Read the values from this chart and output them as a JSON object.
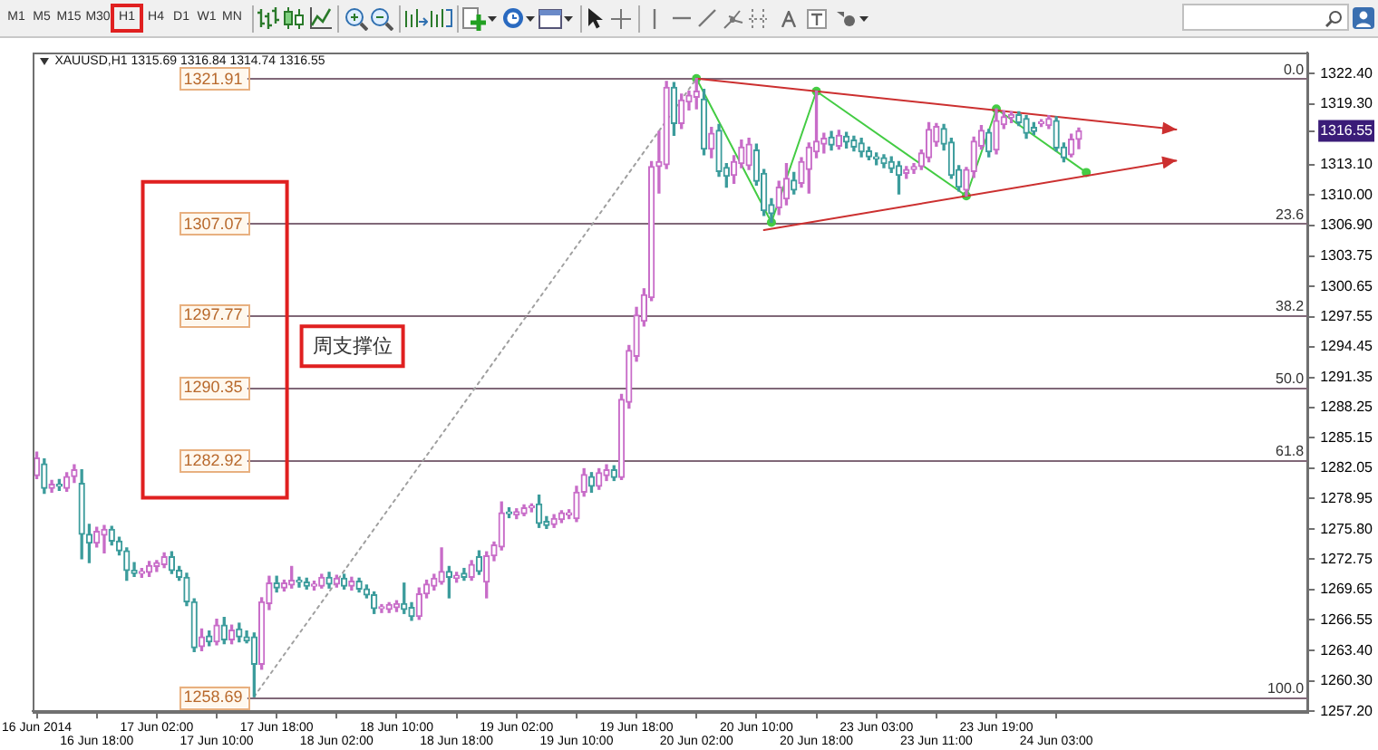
{
  "chart_data": {
    "type": "candlestick",
    "title": "XAUUSD,H1 1315.69 1316.84 1314.74 1316.55",
    "categories": [
      "16 Jun 2014",
      null,
      null,
      null,
      null,
      null,
      null,
      null,
      "16 Jun 18:00",
      null,
      null,
      null,
      null,
      null,
      null,
      null,
      "17 Jun 02:00",
      null,
      null,
      null,
      null,
      null,
      null,
      null,
      "17 Jun 10:00",
      null,
      null,
      null,
      null,
      null,
      null,
      null,
      "17 Jun 18:00",
      null,
      null,
      null,
      null,
      null,
      null,
      null,
      "18 Jun 02:00",
      null,
      null,
      null,
      null,
      null,
      null,
      null,
      "18 Jun 10:00",
      null,
      null,
      null,
      null,
      null,
      null,
      null,
      "18 Jun 18:00",
      null,
      null,
      null,
      null,
      null,
      null,
      null,
      "19 Jun 02:00",
      null,
      null,
      null,
      null,
      null,
      null,
      null,
      "19 Jun 10:00",
      null,
      null,
      null,
      null,
      null,
      null,
      null,
      "19 Jun 18:00",
      null,
      null,
      null,
      null,
      null,
      null,
      null,
      "20 Jun 02:00",
      null,
      null,
      null,
      null,
      null,
      null,
      null,
      "20 Jun 10:00",
      null,
      null,
      null,
      null,
      null,
      null,
      null,
      "20 Jun 18:00",
      null,
      null,
      null,
      null,
      null,
      null,
      null,
      "23 Jun 03:00",
      null,
      null,
      null,
      null,
      null,
      null,
      null,
      "23 Jun 11:00",
      null,
      null,
      null,
      null,
      null,
      null,
      null,
      "23 Jun 19:00",
      null,
      null,
      null,
      null,
      null,
      null,
      null,
      "24 Jun 03:00",
      null,
      null,
      null,
      null,
      null,
      null,
      null,
      null,
      null,
      null,
      null,
      null,
      null,
      null,
      null,
      null,
      null,
      null,
      null,
      null,
      null,
      null,
      null,
      null,
      null,
      null,
      null,
      null,
      null,
      null,
      null,
      null,
      null
    ],
    "ylim": [
      1257.2,
      1324.6
    ],
    "yticks": [
      {
        "value": 1322.4,
        "label": "1322.40"
      },
      {
        "value": 1319.3,
        "label": "1319.30"
      },
      1316.55,
      {
        "value": 1313.1,
        "label": "1313.10"
      },
      {
        "value": 1310,
        "label": "1310.00"
      },
      {
        "value": 1306.9,
        "label": "1306.90"
      },
      1303.75,
      1300.65,
      1297.55,
      1294.45,
      1291.35,
      1288.25,
      1285.15,
      1282.05,
      1278.95,
      {
        "value": 1275.8,
        "label": "1275.80"
      },
      1272.75,
      1269.65,
      1266.55,
      {
        "value": 1263.4,
        "label": "1263.40"
      },
      {
        "value": 1260.3,
        "label": "1260.30"
      },
      {
        "value": 1257.2,
        "label": "1257.20"
      }
    ],
    "series": [
      {
        "ohlc": [
          [
            1281.3,
            1283.7,
            1281.0,
            1283.1
          ],
          [
            1282.5,
            1283.0,
            1279.5,
            1280.0
          ],
          [
            1280.0,
            1280.8,
            1279.6,
            1280.4
          ],
          [
            1280.4,
            1280.9,
            1279.8,
            1280.2
          ],
          [
            1280.0,
            1281.6,
            1279.7,
            1281.2
          ],
          [
            1281.2,
            1282.4,
            1280.6,
            1281.9
          ],
          [
            1280.5,
            1281.9,
            1272.8,
            1275.3
          ],
          [
            1275.3,
            1276.3,
            1272.4,
            1274.4
          ],
          [
            1274.4,
            1276.0,
            1274.0,
            1275.6
          ],
          [
            1275.2,
            1276.2,
            1273.4,
            1275.8
          ],
          [
            1275.8,
            1276.1,
            1274.2,
            1274.6
          ],
          [
            1274.6,
            1275.0,
            1273.2,
            1273.6
          ],
          [
            1273.6,
            1273.9,
            1270.6,
            1271.6
          ],
          [
            1271.6,
            1272.4,
            1271.0,
            1271.3
          ],
          [
            1271.3,
            1271.8,
            1270.9,
            1271.4
          ],
          [
            1271.4,
            1272.5,
            1271.0,
            1272.1
          ],
          [
            1272.0,
            1272.6,
            1271.5,
            1272.4
          ],
          [
            1272.2,
            1273.4,
            1271.9,
            1273.0
          ],
          [
            1273.0,
            1273.5,
            1271.3,
            1271.6
          ],
          [
            1271.6,
            1272.0,
            1270.6,
            1270.9
          ],
          [
            1270.9,
            1271.3,
            1268.0,
            1268.4
          ],
          [
            1268.4,
            1268.7,
            1263.3,
            1263.7
          ],
          [
            1263.8,
            1265.6,
            1263.4,
            1264.8
          ],
          [
            1264.9,
            1265.4,
            1263.9,
            1264.3
          ],
          [
            1264.3,
            1266.6,
            1264.0,
            1266.0
          ],
          [
            1266.0,
            1266.8,
            1264.1,
            1264.5
          ],
          [
            1264.5,
            1266.0,
            1264.1,
            1265.5
          ],
          [
            1265.6,
            1266.2,
            1264.3,
            1264.8
          ],
          [
            1264.8,
            1265.4,
            1264.2,
            1264.4
          ],
          [
            1264.8,
            1265.2,
            1258.69,
            1262.0
          ],
          [
            1262.0,
            1268.8,
            1261.5,
            1268.4
          ],
          [
            1268.2,
            1271.0,
            1267.6,
            1270.3
          ],
          [
            1270.3,
            1271.0,
            1269.4,
            1269.8
          ],
          [
            1269.8,
            1270.6,
            1269.5,
            1270.3
          ],
          [
            1270.1,
            1272.0,
            1269.8,
            1270.6
          ],
          [
            1270.5,
            1270.9,
            1269.9,
            1270.4
          ],
          [
            1270.4,
            1270.8,
            1269.7,
            1270.0
          ],
          [
            1270.0,
            1270.5,
            1269.6,
            1270.1
          ],
          [
            1270.0,
            1271.2,
            1269.8,
            1270.9
          ],
          [
            1270.9,
            1271.4,
            1269.8,
            1270.2
          ],
          [
            1270.2,
            1271.1,
            1269.9,
            1270.8
          ],
          [
            1270.8,
            1271.2,
            1269.7,
            1270.0
          ],
          [
            1270.0,
            1270.9,
            1269.6,
            1270.5
          ],
          [
            1270.5,
            1270.8,
            1269.4,
            1269.7
          ],
          [
            1269.7,
            1270.1,
            1268.8,
            1269.1
          ],
          [
            1269.1,
            1269.4,
            1267.2,
            1267.7
          ],
          [
            1267.7,
            1268.1,
            1267.3,
            1267.8
          ],
          [
            1267.6,
            1268.3,
            1267.3,
            1268.1
          ],
          [
            1267.8,
            1268.5,
            1267.4,
            1268.2
          ],
          [
            1268.2,
            1270.3,
            1267.2,
            1267.6
          ],
          [
            1267.8,
            1268.3,
            1266.5,
            1266.9
          ],
          [
            1266.9,
            1269.8,
            1266.6,
            1269.2
          ],
          [
            1269.2,
            1270.6,
            1268.8,
            1270.2
          ],
          [
            1270.0,
            1271.2,
            1269.6,
            1270.8
          ],
          [
            1270.4,
            1273.9,
            1270.2,
            1271.5
          ],
          [
            1271.5,
            1272.0,
            1268.8,
            1270.9
          ],
          [
            1270.8,
            1271.4,
            1270.4,
            1271.1
          ],
          [
            1271.3,
            1271.8,
            1270.6,
            1270.9
          ],
          [
            1270.9,
            1272.6,
            1270.6,
            1272.2
          ],
          [
            1273.0,
            1273.6,
            1271.2,
            1271.5
          ],
          [
            1270.4,
            1273.5,
            1268.8,
            1273.1
          ],
          [
            1273.1,
            1274.5,
            1272.6,
            1274.2
          ],
          [
            1274.0,
            1278.6,
            1273.7,
            1277.5
          ],
          [
            1277.5,
            1278.0,
            1277.0,
            1277.4
          ],
          [
            1277.3,
            1277.9,
            1276.9,
            1277.6
          ],
          [
            1277.4,
            1278.3,
            1277.2,
            1278.0
          ],
          [
            1278.0,
            1278.4,
            1277.6,
            1278.1
          ],
          [
            1278.4,
            1279.3,
            1276.0,
            1276.4
          ],
          [
            1276.6,
            1277.1,
            1275.9,
            1276.2
          ],
          [
            1276.3,
            1277.3,
            1276.0,
            1276.9
          ],
          [
            1276.8,
            1277.7,
            1276.5,
            1277.5
          ],
          [
            1277.3,
            1277.8,
            1276.9,
            1277.4
          ],
          [
            1276.9,
            1280.2,
            1276.6,
            1279.6
          ],
          [
            1279.6,
            1282.0,
            1279.2,
            1281.4
          ],
          [
            1281.2,
            1281.6,
            1279.6,
            1280.2
          ],
          [
            1280.2,
            1282.0,
            1279.9,
            1281.6
          ],
          [
            1281.3,
            1282.4,
            1280.8,
            1281.9
          ],
          [
            1281.9,
            1282.3,
            1280.8,
            1281.1
          ],
          [
            1281.1,
            1289.6,
            1280.9,
            1289.1
          ],
          [
            1288.8,
            1294.6,
            1288.2,
            1294.1
          ],
          [
            1293.5,
            1298.5,
            1293.0,
            1297.7
          ],
          [
            1297.1,
            1300.4,
            1296.6,
            1299.8
          ],
          [
            1299.5,
            1313.4,
            1299.2,
            1312.9
          ],
          [
            1312.9,
            1316.5,
            1310.2,
            1313.4
          ],
          [
            1313.1,
            1321.6,
            1312.7,
            1321.0
          ],
          [
            1321.0,
            1321.5,
            1316.1,
            1317.3
          ],
          [
            1317.3,
            1320.3,
            1316.8,
            1319.7
          ],
          [
            1319.5,
            1320.6,
            1318.7,
            1320.2
          ],
          [
            1320.0,
            1321.91,
            1318.8,
            1320.6
          ],
          [
            1319.8,
            1320.8,
            1314.1,
            1314.7
          ],
          [
            1314.7,
            1316.9,
            1313.8,
            1316.3
          ],
          [
            1316.6,
            1317.2,
            1311.9,
            1312.4
          ],
          [
            1312.8,
            1313.2,
            1310.8,
            1311.9
          ],
          [
            1312.0,
            1314.0,
            1311.2,
            1313.4
          ],
          [
            1313.2,
            1315.6,
            1312.8,
            1314.9
          ],
          [
            1313.0,
            1315.8,
            1312.6,
            1315.2
          ],
          [
            1314.6,
            1315.2,
            1311.0,
            1311.4
          ],
          [
            1312.2,
            1312.6,
            1307.9,
            1308.4
          ],
          [
            1309.0,
            1309.6,
            1307.2,
            1308.1
          ],
          [
            1308.7,
            1311.4,
            1308.0,
            1310.8
          ],
          [
            1309.6,
            1313.2,
            1309.0,
            1311.7
          ],
          [
            1311.5,
            1312.3,
            1310.1,
            1310.5
          ],
          [
            1311.2,
            1313.8,
            1310.8,
            1313.4
          ],
          [
            1312.6,
            1315.3,
            1310.2,
            1314.9
          ],
          [
            1314.4,
            1320.6,
            1313.8,
            1315.5
          ],
          [
            1315.2,
            1316.3,
            1314.3,
            1315.8
          ],
          [
            1315.9,
            1316.5,
            1314.6,
            1315.1
          ],
          [
            1315.0,
            1316.6,
            1314.7,
            1316.1
          ],
          [
            1316.0,
            1316.4,
            1314.8,
            1315.4
          ],
          [
            1315.6,
            1316.0,
            1314.5,
            1314.9
          ],
          [
            1315.3,
            1315.8,
            1313.9,
            1314.4
          ],
          [
            1314.5,
            1314.9,
            1313.6,
            1313.9
          ],
          [
            1313.9,
            1314.3,
            1313.1,
            1313.7
          ],
          [
            1313.8,
            1314.1,
            1312.8,
            1313.2
          ],
          [
            1313.4,
            1313.9,
            1312.3,
            1312.7
          ],
          [
            1313.0,
            1313.4,
            1310.1,
            1312.0
          ],
          [
            1312.2,
            1312.9,
            1311.7,
            1312.6
          ],
          [
            1312.6,
            1313.2,
            1312.2,
            1312.9
          ],
          [
            1312.9,
            1314.6,
            1312.6,
            1314.3
          ],
          [
            1313.8,
            1317.4,
            1313.4,
            1316.7
          ],
          [
            1315.4,
            1317.3,
            1315.0,
            1317.0
          ],
          [
            1316.8,
            1317.2,
            1314.6,
            1315.2
          ],
          [
            1315.4,
            1315.8,
            1311.7,
            1312.0
          ],
          [
            1312.6,
            1313.0,
            1310.4,
            1310.8
          ],
          [
            1310.5,
            1312.8,
            1309.9,
            1312.6
          ],
          [
            1312.4,
            1315.9,
            1311.8,
            1315.5
          ],
          [
            1315.0,
            1317.1,
            1314.7,
            1316.6
          ],
          [
            1316.4,
            1316.7,
            1313.9,
            1314.4
          ],
          [
            1314.6,
            1318.8,
            1314.2,
            1317.6
          ],
          [
            1317.2,
            1318.6,
            1316.8,
            1318.0
          ],
          [
            1317.9,
            1318.5,
            1317.4,
            1318.2
          ],
          [
            1318.2,
            1318.5,
            1317.1,
            1317.4
          ],
          [
            1317.8,
            1318.1,
            1315.8,
            1316.3
          ],
          [
            1316.9,
            1317.4,
            1316.2,
            1316.5
          ],
          [
            1317.3,
            1317.7,
            1317.0,
            1317.3
          ],
          [
            1317.1,
            1318.1,
            1316.8,
            1317.8
          ],
          [
            1317.6,
            1318.0,
            1314.5,
            1314.8
          ],
          [
            1314.9,
            1315.3,
            1313.4,
            1313.8
          ],
          [
            1314.1,
            1316.2,
            1313.9,
            1315.7
          ],
          [
            1315.69,
            1316.84,
            1314.74,
            1316.55
          ],
          null,
          null,
          null,
          null,
          null,
          null,
          null,
          null,
          null,
          null,
          null,
          null,
          null,
          null,
          null,
          null,
          null,
          null,
          null,
          null,
          null,
          null,
          null,
          null,
          null,
          null,
          null,
          null,
          null,
          null
        ],
        "colors": [
          "#c86cc8",
          "#3c9c9c",
          "#c86cc8",
          "#3c9c9c",
          "#c86cc8",
          "#c86cc8",
          "#3c9c9c",
          "#3c9c9c",
          "#c86cc8",
          "#c86cc8",
          "#3c9c9c",
          "#3c9c9c",
          "#3c9c9c",
          "#3c9c9c",
          "#c86cc8",
          "#c86cc8",
          "#c86cc8",
          "#c86cc8",
          "#3c9c9c",
          "#3c9c9c",
          "#3c9c9c",
          "#3c9c9c",
          "#c86cc8",
          "#3c9c9c",
          "#c86cc8",
          "#3c9c9c",
          "#c86cc8",
          "#3c9c9c",
          "#3c9c9c",
          "#3c9c9c",
          "#c86cc8",
          "#c86cc8",
          "#3c9c9c",
          "#c86cc8",
          "#c86cc8",
          "#3c9c9c",
          "#3c9c9c",
          "#c86cc8",
          "#c86cc8",
          "#3c9c9c",
          "#c86cc8",
          "#3c9c9c",
          "#c86cc8",
          "#3c9c9c",
          "#3c9c9c",
          "#3c9c9c",
          "#c86cc8",
          "#c86cc8",
          "#c86cc8",
          "#3c9c9c",
          "#3c9c9c",
          "#c86cc8",
          "#c86cc8",
          "#c86cc8",
          "#c86cc8",
          "#3c9c9c",
          "#c86cc8",
          "#3c9c9c",
          "#c86cc8",
          "#3c9c9c",
          "#c86cc8",
          "#c86cc8",
          "#c86cc8",
          "#3c9c9c",
          "#c86cc8",
          "#c86cc8",
          "#c86cc8",
          "#3c9c9c",
          "#3c9c9c",
          "#c86cc8",
          "#c86cc8",
          "#c86cc8",
          "#c86cc8",
          "#c86cc8",
          "#3c9c9c",
          "#c86cc8",
          "#c86cc8",
          "#3c9c9c",
          "#c86cc8",
          "#c86cc8",
          "#c86cc8",
          "#c86cc8",
          "#c86cc8",
          "#c86cc8",
          "#c86cc8",
          "#3c9c9c",
          "#c86cc8",
          "#c86cc8",
          "#c86cc8",
          "#3c9c9c",
          "#c86cc8",
          "#3c9c9c",
          "#3c9c9c",
          "#c86cc8",
          "#c86cc8",
          "#c86cc8",
          "#3c9c9c",
          "#3c9c9c",
          "#3c9c9c",
          "#c86cc8",
          "#c86cc8",
          "#3c9c9c",
          "#c86cc8",
          "#c86cc8",
          "#c86cc8",
          "#c86cc8",
          "#3c9c9c",
          "#c86cc8",
          "#3c9c9c",
          "#3c9c9c",
          "#3c9c9c",
          "#3c9c9c",
          "#3c9c9c",
          "#3c9c9c",
          "#3c9c9c",
          "#3c9c9c",
          "#c86cc8",
          "#c86cc8",
          "#c86cc8",
          "#c86cc8",
          "#c86cc8",
          "#3c9c9c",
          "#3c9c9c",
          "#3c9c9c",
          "#c86cc8",
          "#c86cc8",
          "#c86cc8",
          "#3c9c9c",
          "#c86cc8",
          "#c86cc8",
          "#c86cc8",
          "#3c9c9c",
          "#3c9c9c",
          "#3c9c9c",
          "#c86cc8",
          "#c86cc8",
          "#3c9c9c",
          "#3c9c9c",
          "#c86cc8",
          "#c86cc8",
          null,
          null,
          null,
          null,
          null,
          null,
          null,
          null,
          null,
          null,
          null,
          null,
          null,
          null,
          null,
          null,
          null,
          null,
          null,
          null,
          null,
          null,
          null,
          null,
          null,
          null,
          null,
          null,
          null,
          null
        ]
      },
      {
        "type": "line",
        "color": "#a0a0a0",
        "line_style": "dotted",
        "marker": "none",
        "values": [
          null,
          null,
          null,
          null,
          null,
          null,
          null,
          null,
          null,
          null,
          null,
          null,
          null,
          null,
          null,
          null,
          null,
          null,
          null,
          null,
          null,
          null,
          null,
          null,
          null,
          null,
          null,
          null,
          null,
          1258.7,
          null,
          null,
          null,
          null,
          null,
          null,
          null,
          null,
          null,
          null,
          null,
          null,
          null,
          null,
          null,
          null,
          null,
          null,
          null,
          null,
          null,
          null,
          null,
          null,
          null,
          null,
          null,
          null,
          null,
          null,
          null,
          null,
          null,
          null,
          null,
          null,
          null,
          null,
          null,
          null,
          null,
          null,
          null,
          null,
          null,
          null,
          null,
          null,
          null,
          null,
          null,
          null,
          null,
          null,
          null,
          null,
          null,
          null,
          1321.9,
          null,
          null,
          null,
          null,
          null,
          null,
          null,
          null,
          null,
          null,
          null,
          null,
          null,
          null,
          null,
          null,
          null,
          null,
          null,
          null,
          null,
          null,
          null,
          null,
          null,
          null,
          null,
          null,
          null,
          null,
          null,
          null,
          null,
          null,
          null,
          null,
          null,
          null,
          null,
          null,
          null,
          null,
          null,
          null,
          null,
          null,
          null,
          null,
          null,
          null,
          null,
          null,
          null,
          null,
          null,
          null,
          null,
          null,
          null,
          null,
          null,
          null,
          null,
          null,
          null,
          null,
          null,
          null,
          null,
          null,
          null,
          null,
          null,
          null,
          null,
          null,
          null,
          null,
          null,
          null,
          null
        ]
      },
      {
        "type": "line",
        "color": "#cc3030",
        "line_style": "solid",
        "marker": "none",
        "values": [
          null,
          null,
          null,
          null,
          null,
          null,
          null,
          null,
          null,
          null,
          null,
          null,
          null,
          null,
          null,
          null,
          null,
          null,
          null,
          null,
          null,
          null,
          null,
          null,
          null,
          null,
          null,
          null,
          null,
          null,
          null,
          null,
          null,
          null,
          null,
          null,
          null,
          null,
          null,
          null,
          null,
          null,
          null,
          null,
          null,
          null,
          null,
          null,
          null,
          null,
          null,
          null,
          null,
          null,
          null,
          null,
          null,
          null,
          null,
          null,
          null,
          null,
          null,
          null,
          null,
          null,
          null,
          null,
          null,
          null,
          null,
          null,
          null,
          null,
          null,
          null,
          null,
          null,
          null,
          null,
          null,
          null,
          null,
          null,
          null,
          null,
          null,
          null,
          1321.9,
          null,
          null,
          null,
          null,
          null,
          null,
          null,
          null,
          null,
          null,
          null,
          null,
          null,
          null,
          null,
          null,
          null,
          null,
          null,
          null,
          null,
          null,
          null,
          null,
          null,
          null,
          null,
          null,
          null,
          null,
          null,
          null,
          null,
          null,
          null,
          null,
          null,
          null,
          null,
          null,
          null,
          null,
          null,
          null,
          null,
          null,
          null,
          null,
          null,
          null,
          null,
          null,
          null,
          null,
          null,
          null,
          null,
          null,
          null,
          null,
          null,
          null,
          null,
          1316.7,
          null,
          null,
          null,
          null,
          null,
          null,
          null,
          null,
          null,
          null,
          null,
          null,
          null,
          null,
          null,
          null,
          null
        ]
      },
      {
        "type": "line",
        "color": "#cc3030",
        "line_style": "solid",
        "marker": "none",
        "values": [
          null,
          null,
          null,
          null,
          null,
          null,
          null,
          null,
          null,
          null,
          null,
          null,
          null,
          null,
          null,
          null,
          null,
          null,
          null,
          null,
          null,
          null,
          null,
          null,
          null,
          null,
          null,
          null,
          null,
          null,
          null,
          null,
          null,
          null,
          null,
          null,
          null,
          null,
          null,
          null,
          null,
          null,
          null,
          null,
          null,
          null,
          null,
          null,
          null,
          null,
          null,
          null,
          null,
          null,
          null,
          null,
          null,
          null,
          null,
          null,
          null,
          null,
          null,
          null,
          null,
          null,
          null,
          null,
          null,
          null,
          null,
          null,
          null,
          null,
          null,
          null,
          null,
          null,
          null,
          null,
          null,
          null,
          null,
          null,
          null,
          null,
          null,
          null,
          null,
          null,
          null,
          null,
          null,
          null,
          null,
          null,
          null,
          1306.4,
          null,
          null,
          null,
          null,
          null,
          null,
          null,
          null,
          null,
          null,
          null,
          null,
          null,
          null,
          null,
          null,
          null,
          null,
          null,
          null,
          null,
          null,
          null,
          null,
          null,
          null,
          null,
          null,
          null,
          null,
          null,
          null,
          null,
          null,
          null,
          null,
          null,
          null,
          null,
          null,
          null,
          null,
          null,
          null,
          null,
          null,
          null,
          null,
          null,
          null,
          null,
          null,
          null,
          null,
          1313.5,
          null,
          null,
          null,
          null,
          null,
          null,
          null,
          null,
          null,
          null,
          null,
          null,
          null,
          null,
          null,
          null,
          null
        ]
      },
      {
        "type": "line",
        "color": "#44cc44",
        "line_style": "solid",
        "marker": "circle",
        "values": [
          null,
          null,
          null,
          null,
          null,
          null,
          null,
          null,
          null,
          null,
          null,
          null,
          null,
          null,
          null,
          null,
          null,
          null,
          null,
          null,
          null,
          null,
          null,
          null,
          null,
          null,
          null,
          null,
          null,
          null,
          null,
          null,
          null,
          null,
          null,
          null,
          null,
          null,
          null,
          null,
          null,
          null,
          null,
          null,
          null,
          null,
          null,
          null,
          null,
          null,
          null,
          null,
          null,
          null,
          null,
          null,
          null,
          null,
          null,
          null,
          null,
          null,
          null,
          null,
          null,
          null,
          null,
          null,
          null,
          null,
          null,
          null,
          null,
          null,
          null,
          null,
          null,
          null,
          null,
          null,
          null,
          null,
          null,
          null,
          null,
          null,
          null,
          null,
          1321.9,
          null,
          null,
          null,
          null,
          null,
          null,
          null,
          null,
          null,
          1307.2,
          null,
          null,
          null,
          null,
          null,
          1320.6,
          null,
          null,
          null,
          null,
          null,
          null,
          null,
          null,
          null,
          null,
          null,
          null,
          null,
          null,
          null,
          null,
          null,
          null,
          null,
          1309.9,
          null,
          null,
          null,
          1318.8,
          null,
          null,
          null,
          null,
          null,
          null,
          null,
          null,
          null,
          null,
          null,
          1312.3,
          null,
          null,
          null,
          null,
          null,
          null,
          null,
          null,
          null,
          null,
          null,
          null,
          null,
          null,
          null,
          null,
          null,
          null,
          null,
          null,
          null,
          null,
          null,
          null,
          null,
          null,
          null,
          null,
          null
        ]
      }
    ],
    "ref_lines": [
      {
        "axis": "y",
        "value": 1321.91,
        "label": "1321.91",
        "color": "#806878"
      },
      {
        "axis": "y",
        "value": 1307.07,
        "label": "1307.07",
        "color": "#806878"
      },
      {
        "axis": "y",
        "value": 1297.77,
        "label": "1297.77",
        "color": "#806878"
      },
      {
        "axis": "y",
        "value": 1290.35,
        "label": "1290.35",
        "color": "#806878"
      },
      {
        "axis": "y",
        "value": 1282.92,
        "label": "1282.92",
        "color": "#806878"
      },
      {
        "axis": "y",
        "value": 1258.69,
        "label": "1258.69",
        "color": "#806878"
      }
    ],
    "annotations": [
      "M1",
      "M5",
      "M15",
      "M30",
      "H1",
      "H4",
      "D1",
      "W1",
      "MN",
      {
        "text": "0.0",
        "y": 1321.91
      },
      {
        "text": "23.6",
        "y": 1307.07
      },
      {
        "text": "38.2",
        "y": 1297.77
      },
      {
        "text": "50.0",
        "y": 1290.35
      },
      {
        "text": "61.8",
        "y": 1282.92
      },
      {
        "text": "100.0",
        "y": 1258.69
      },
      "周支撑位"
    ]
  }
}
